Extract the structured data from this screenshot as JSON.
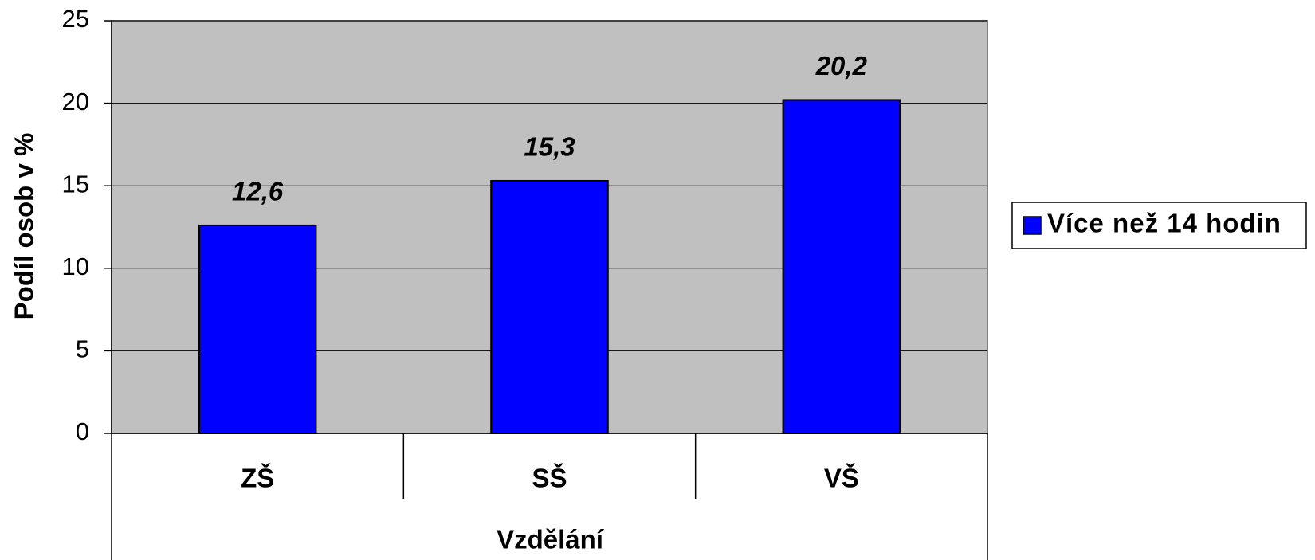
{
  "chart_data": {
    "type": "bar",
    "x_label": "Vzdělání",
    "y_label": "Podíl osob v %",
    "categories": [
      "ZŠ",
      "SŠ",
      "VŠ"
    ],
    "series": [
      {
        "name": "Více než 14 hodin",
        "color": "#0000ff",
        "values": [
          12.6,
          15.3,
          20.2
        ],
        "value_labels": [
          "12,6",
          "15,3",
          "20,2"
        ]
      }
    ],
    "ylim": [
      0,
      25
    ],
    "yticks": [
      0,
      5,
      10,
      15,
      20,
      25
    ],
    "grid": true,
    "legend": "right",
    "plot_background": "#c0c0c0"
  }
}
